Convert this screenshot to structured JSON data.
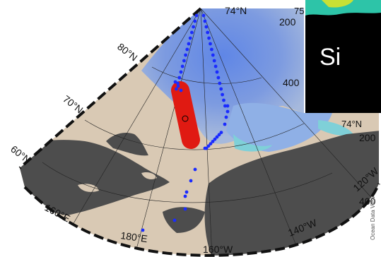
{
  "map": {
    "latitude_labels": [
      "74°N",
      "80°N",
      "70°N",
      "60°N"
    ],
    "longitude_labels": [
      "160°E",
      "180°E",
      "160°W",
      "140°W",
      "120°W"
    ],
    "station_marker": "O",
    "credit": "Ocean Data View"
  },
  "inset": {
    "element": "Si",
    "depth_ticks_upper": [
      "75",
      "200",
      "400"
    ],
    "depth_ticks_lower": [
      "200",
      "400"
    ],
    "latitude_label": "74°N"
  },
  "colors": {
    "ocean_shallow": "#9db5d8",
    "ocean_deep": "#5f86e6",
    "shelf_cyan": "#7fd0d8",
    "land_light": "#d9c9b4",
    "land_dark": "#4d4d4d",
    "track_red": "#e01a12",
    "stations": "#1a2bff"
  },
  "legend_icons": [
    "station-dot-icon",
    "transect-bar-icon"
  ]
}
